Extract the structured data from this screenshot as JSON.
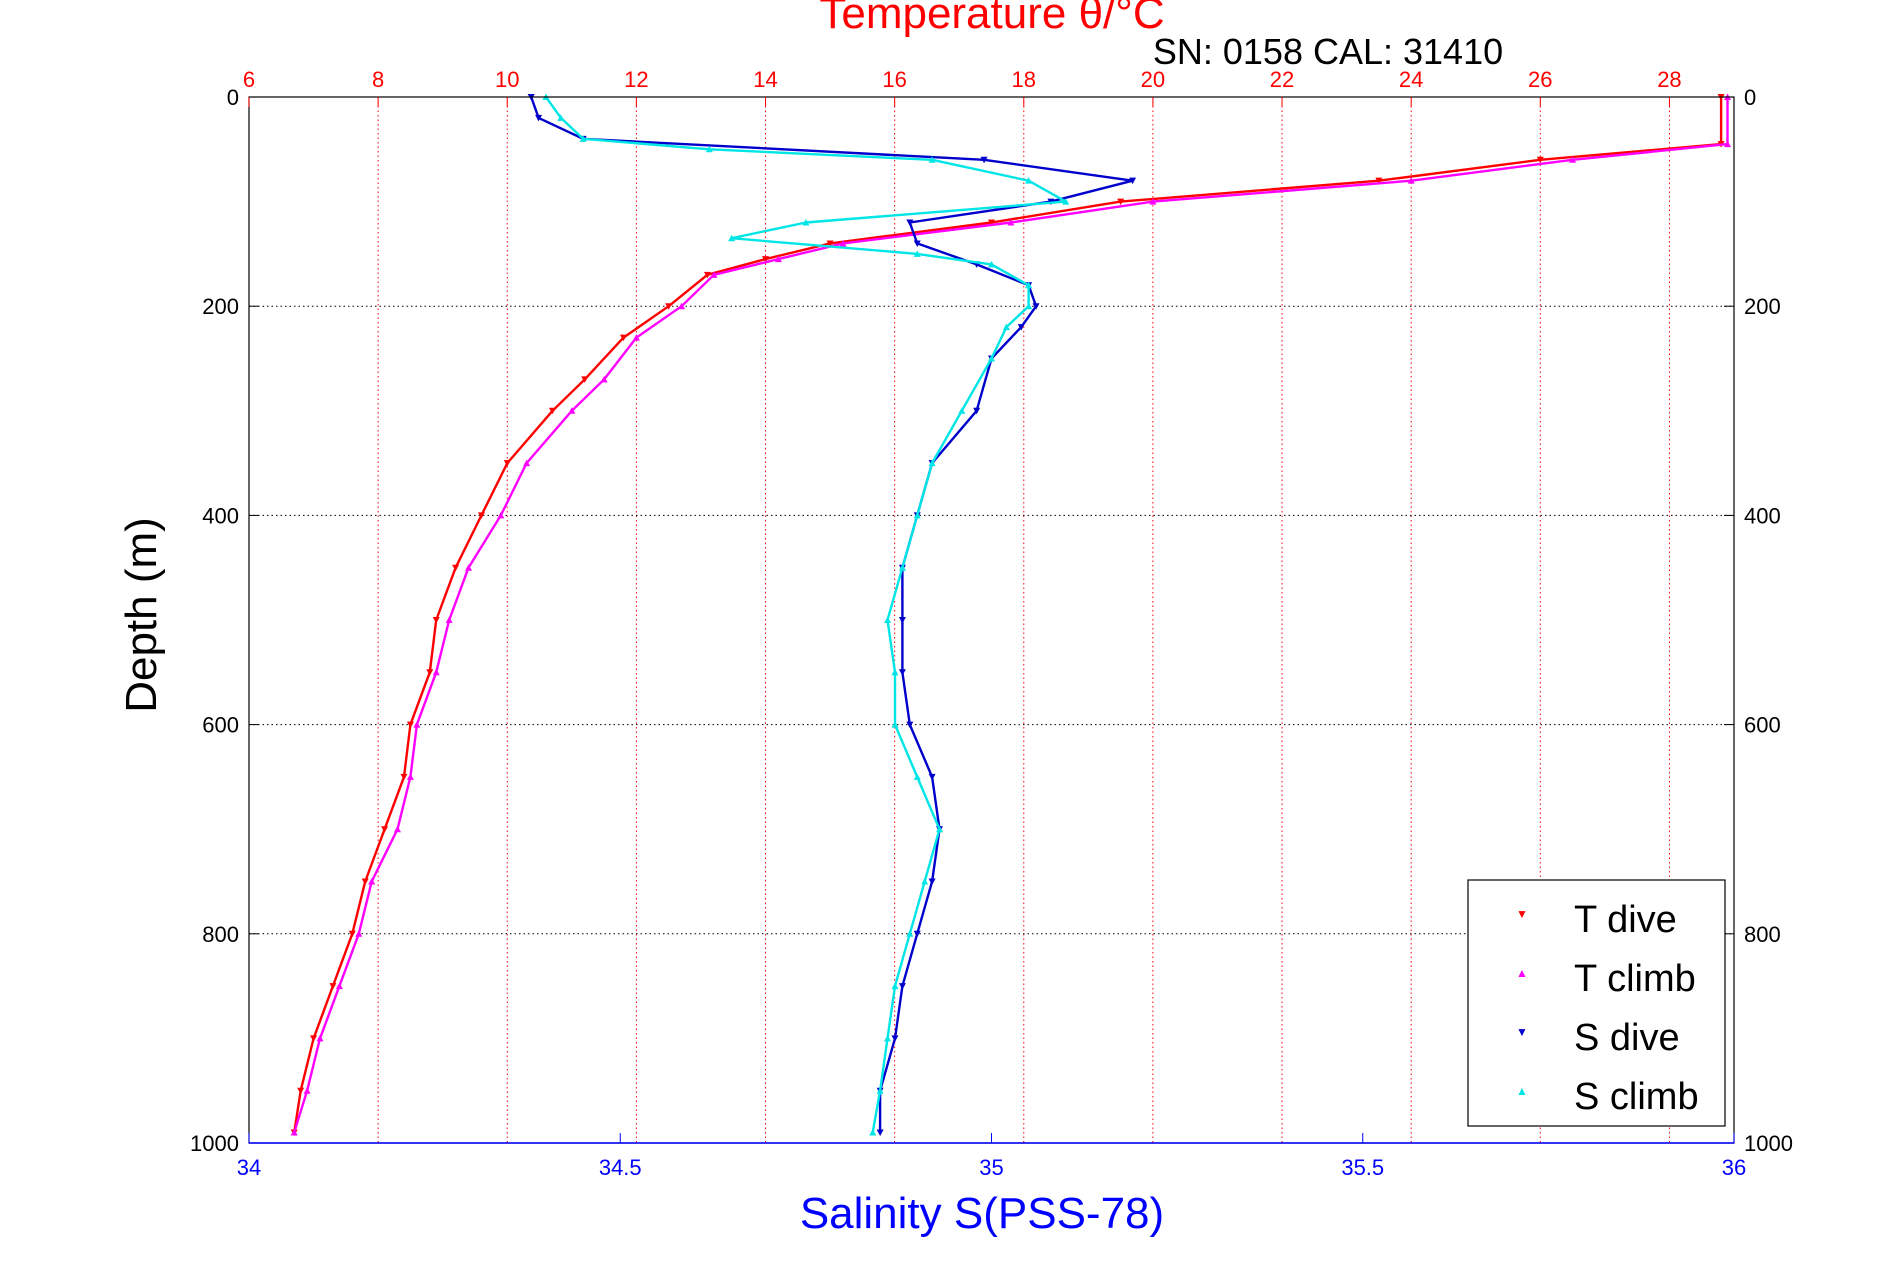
{
  "chart_data": {
    "type": "scatter",
    "title": "Temperature θ/°C",
    "subtitle": "SN: 0158  CAL: 31410",
    "ylabel": "Depth (m)",
    "xlabel_bottom": "Salinity S(PSS-78)",
    "xlabel_top": "Temperature θ/°C",
    "ylim": [
      0,
      1000
    ],
    "y_reversed": true,
    "y_ticks": [
      0,
      200,
      400,
      600,
      800,
      1000
    ],
    "y_tick_labels": [
      "0",
      "200",
      "400",
      "600",
      "800",
      "1000"
    ],
    "temp_axis": {
      "range": [
        6,
        29
      ],
      "ticks": [
        6,
        8,
        10,
        12,
        14,
        16,
        18,
        20,
        22,
        24,
        26,
        28
      ],
      "tick_labels": [
        "6",
        "8",
        "10",
        "12",
        "14",
        "16",
        "18",
        "20",
        "22",
        "24",
        "26",
        "28"
      ]
    },
    "sal_axis": {
      "range": [
        34,
        36
      ],
      "ticks": [
        34,
        34.5,
        35,
        35.5,
        36
      ],
      "tick_labels": [
        "34",
        "34.5",
        "35",
        "35.5",
        "36"
      ]
    },
    "grid": true,
    "legend_position": "bottom-right",
    "colors": {
      "t_dive": "#ff0000",
      "t_climb": "#ff00ff",
      "s_dive": "#0000cc",
      "s_climb": "#00e5e5",
      "temp_axis": "#ff0000",
      "sal_axis": "#0000ff"
    },
    "series": [
      {
        "name": "T dive",
        "axis": "temperature",
        "marker": "down-triangle",
        "depth": [
          0,
          45,
          60,
          80,
          100,
          120,
          140,
          155,
          170,
          200,
          230,
          270,
          300,
          350,
          400,
          450,
          500,
          550,
          600,
          650,
          700,
          750,
          800,
          850,
          900,
          950,
          990
        ],
        "values": [
          28.8,
          28.8,
          26.0,
          23.5,
          19.5,
          17.5,
          15.0,
          14.0,
          13.1,
          12.5,
          11.8,
          11.2,
          10.7,
          10.0,
          9.6,
          9.2,
          8.9,
          8.8,
          8.5,
          8.4,
          8.1,
          7.8,
          7.6,
          7.3,
          7.0,
          6.8,
          6.7
        ]
      },
      {
        "name": "T climb",
        "axis": "temperature",
        "marker": "up-triangle",
        "depth": [
          0,
          45,
          60,
          80,
          100,
          120,
          140,
          155,
          170,
          200,
          230,
          270,
          300,
          350,
          400,
          450,
          500,
          550,
          600,
          650,
          700,
          750,
          800,
          850,
          900,
          950,
          990
        ],
        "values": [
          28.9,
          28.9,
          26.5,
          24.0,
          20.0,
          17.8,
          15.2,
          14.2,
          13.2,
          12.7,
          12.0,
          11.5,
          11.0,
          10.3,
          9.9,
          9.4,
          9.1,
          8.9,
          8.6,
          8.5,
          8.3,
          7.9,
          7.7,
          7.4,
          7.1,
          6.9,
          6.7
        ]
      },
      {
        "name": "S dive",
        "axis": "salinity",
        "marker": "down-triangle",
        "depth": [
          0,
          20,
          40,
          60,
          80,
          100,
          120,
          140,
          160,
          180,
          200,
          220,
          250,
          300,
          350,
          400,
          450,
          500,
          550,
          600,
          650,
          700,
          750,
          800,
          850,
          900,
          950,
          990
        ],
        "values": [
          34.38,
          34.39,
          34.45,
          34.99,
          35.19,
          35.08,
          34.89,
          34.9,
          34.98,
          35.05,
          35.06,
          35.04,
          35.0,
          34.98,
          34.92,
          34.9,
          34.88,
          34.88,
          34.88,
          34.89,
          34.92,
          34.93,
          34.92,
          34.9,
          34.88,
          34.87,
          34.85,
          34.85
        ]
      },
      {
        "name": "S climb",
        "axis": "salinity",
        "marker": "up-triangle",
        "depth": [
          0,
          20,
          40,
          50,
          60,
          80,
          100,
          120,
          135,
          150,
          160,
          180,
          200,
          220,
          250,
          300,
          350,
          400,
          450,
          500,
          550,
          600,
          650,
          700,
          750,
          800,
          850,
          900,
          950,
          990
        ],
        "values": [
          34.4,
          34.42,
          34.45,
          34.62,
          34.92,
          35.05,
          35.1,
          34.75,
          34.65,
          34.9,
          35.0,
          35.05,
          35.05,
          35.02,
          35.0,
          34.96,
          34.92,
          34.9,
          34.88,
          34.86,
          34.87,
          34.87,
          34.9,
          34.93,
          34.91,
          34.89,
          34.87,
          34.86,
          34.85,
          34.84
        ]
      }
    ]
  }
}
